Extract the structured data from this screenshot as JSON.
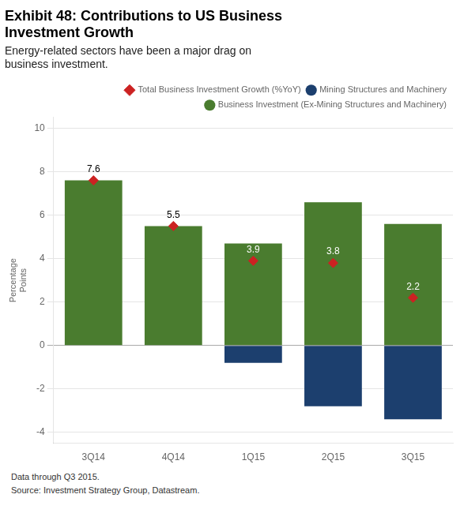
{
  "chart_data": {
    "type": "bar",
    "title": [
      "Exhibit 48: Contributions to US Business",
      "Investment Growth"
    ],
    "subtitle": [
      "Energy-related sectors have been a major drag on",
      "business investment."
    ],
    "y_label": [
      "Percentage",
      "Points"
    ],
    "footnote": [
      "Data through Q3 2015.",
      "Source: Investment Strategy Group, Datastream."
    ],
    "categories": [
      "3Q14",
      "4Q14",
      "1Q15",
      "2Q15",
      "3Q15"
    ],
    "stacked": true,
    "series": [
      {
        "name": "Mining Structures and Machinery",
        "type": "bar",
        "color": "#1c3f6e",
        "values": [
          0.0,
          0.0,
          -0.8,
          -2.8,
          -3.4
        ]
      },
      {
        "name": "Business Investment (Ex-Mining Structures and Machinery)",
        "type": "bar",
        "color": "#4a7c2f",
        "values": [
          7.6,
          5.5,
          4.7,
          6.6,
          5.6
        ]
      },
      {
        "name": "Total Business Investment Growth (%YoY)",
        "type": "scatter",
        "marker": "diamond",
        "color": "#cc2222",
        "values": [
          7.6,
          5.5,
          3.9,
          3.8,
          2.2
        ],
        "data_labels": true
      }
    ],
    "ylim": [
      -4.5,
      10.5
    ],
    "yticks": [
      -4,
      -2,
      0,
      2,
      4,
      6,
      8,
      10
    ],
    "grid": true,
    "legend": "upper right"
  }
}
